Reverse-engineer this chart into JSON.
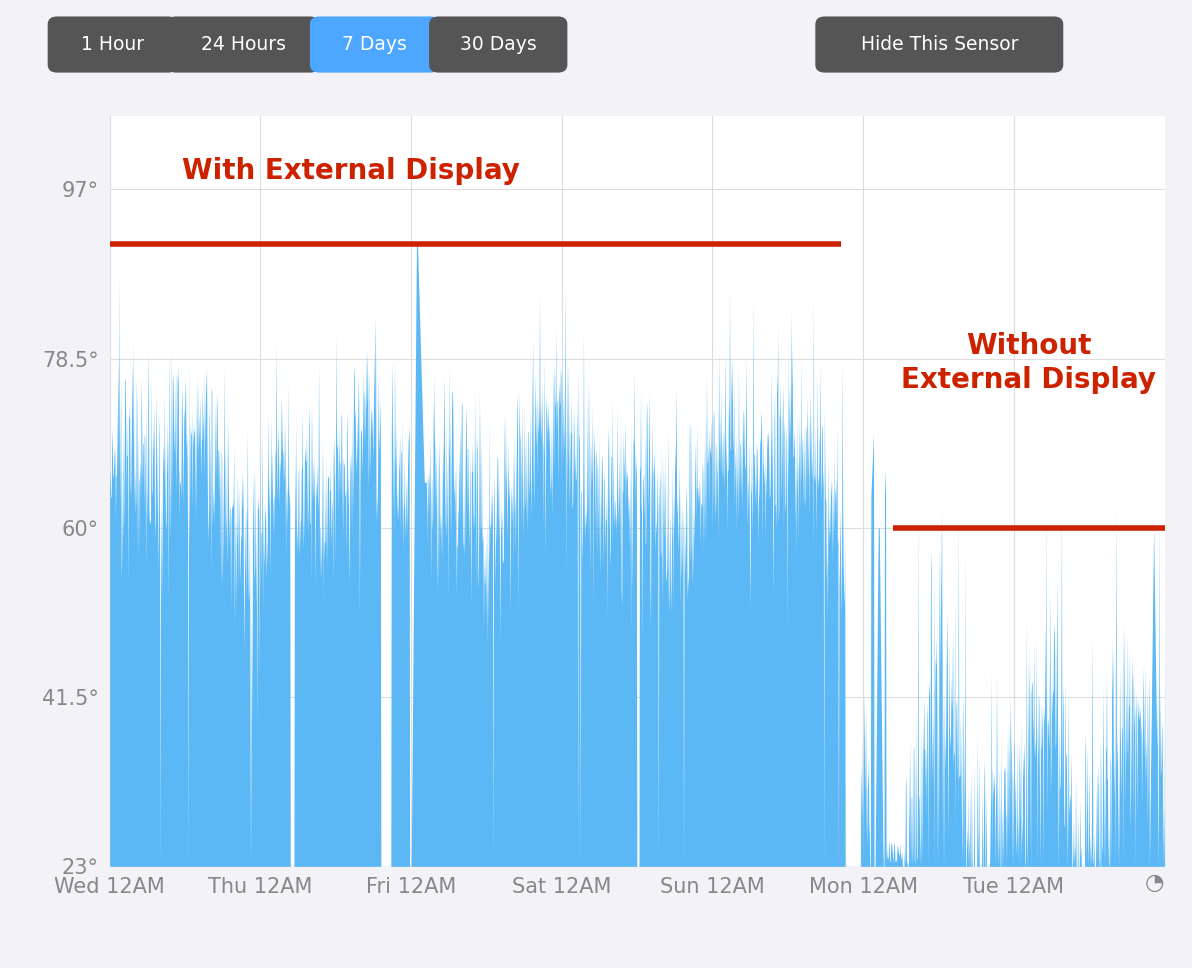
{
  "yticks": [
    23,
    41.5,
    60,
    78.5,
    97
  ],
  "ytick_labels": [
    "23°",
    "41.5°",
    "60°",
    "78.5°",
    "97°"
  ],
  "ylim": [
    23,
    105
  ],
  "xtick_positions": [
    0,
    1,
    2,
    3,
    4,
    5,
    6
  ],
  "xtick_labels": [
    "Wed 12AM",
    "Thu 12AM",
    "Fri 12AM",
    "Sat 12AM",
    "Sun 12AM",
    "Mon 12AM",
    "Tue 12AM"
  ],
  "fill_color": "#5BB8F5",
  "background_color": "#F2F2F7",
  "plot_bg_color": "#FFFFFF",
  "annotation1_text": "With External Display",
  "annotation2_line1": "Without",
  "annotation2_line2": "External Display",
  "annotation_color": "#CC2200",
  "line1_y": 91.0,
  "line1_x_start": 0.0,
  "line1_x_end": 4.85,
  "line2_y": 60.0,
  "line2_x_start": 5.2,
  "line2_x_end": 7.0,
  "button_color": "#555555",
  "button_active_color": "#4DA6FF",
  "button_text_color": "#FFFFFF",
  "grid_color": "#DDDDDD",
  "tick_label_color": "#888888",
  "xlim": [
    0,
    7
  ]
}
